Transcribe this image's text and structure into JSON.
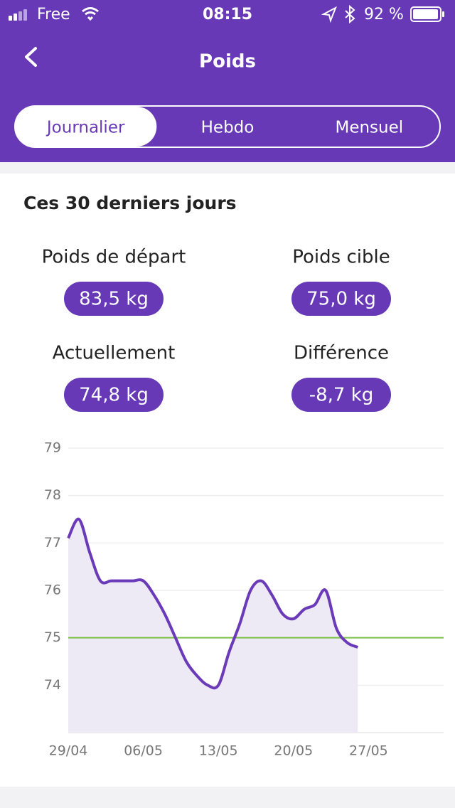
{
  "status_bar": {
    "carrier": "Free",
    "time": "08:15",
    "battery": "92 %"
  },
  "header": {
    "title": "Poids"
  },
  "tabs": {
    "items": [
      "Journalier",
      "Hebdo",
      "Mensuel"
    ],
    "active": 0
  },
  "card": {
    "title": "Ces 30 derniers jours",
    "stats": [
      {
        "label": "Poids de départ",
        "value": "83,5 kg"
      },
      {
        "label": "Poids cible",
        "value": "75,0 kg"
      },
      {
        "label": "Actuellement",
        "value": "74,8 kg"
      },
      {
        "label": "Différence",
        "value": "-8,7 kg"
      }
    ]
  },
  "chart_data": {
    "type": "area",
    "x": [
      "29/04",
      "30/04",
      "01/05",
      "02/05",
      "03/05",
      "04/05",
      "05/05",
      "06/05",
      "07/05",
      "08/05",
      "09/05",
      "10/05",
      "11/05",
      "12/05",
      "13/05",
      "14/05",
      "15/05",
      "16/05",
      "17/05",
      "18/05",
      "19/05",
      "20/05",
      "21/05",
      "22/05",
      "23/05",
      "24/05",
      "25/05",
      "26/05"
    ],
    "series": [
      {
        "color": "#6a3ab8",
        "fill": "#ede9f5",
        "values": [
          77.1,
          77.5,
          76.8,
          76.2,
          76.2,
          76.2,
          76.2,
          76.2,
          75.9,
          75.5,
          75.0,
          74.5,
          74.2,
          74.0,
          74.0,
          74.7,
          75.3,
          76.0,
          76.2,
          75.9,
          75.5,
          75.4,
          75.6,
          75.7,
          76.0,
          75.2,
          74.9,
          74.8
        ]
      }
    ],
    "target": 75,
    "target_color": "#7ac143",
    "xlim": [
      "29/04",
      "03/06"
    ],
    "xticks": [
      "29/04",
      "06/05",
      "13/05",
      "20/05",
      "27/05"
    ],
    "ylim": [
      73,
      79
    ],
    "yticks": [
      74,
      75,
      76,
      77,
      78,
      79
    ],
    "grid": true
  }
}
